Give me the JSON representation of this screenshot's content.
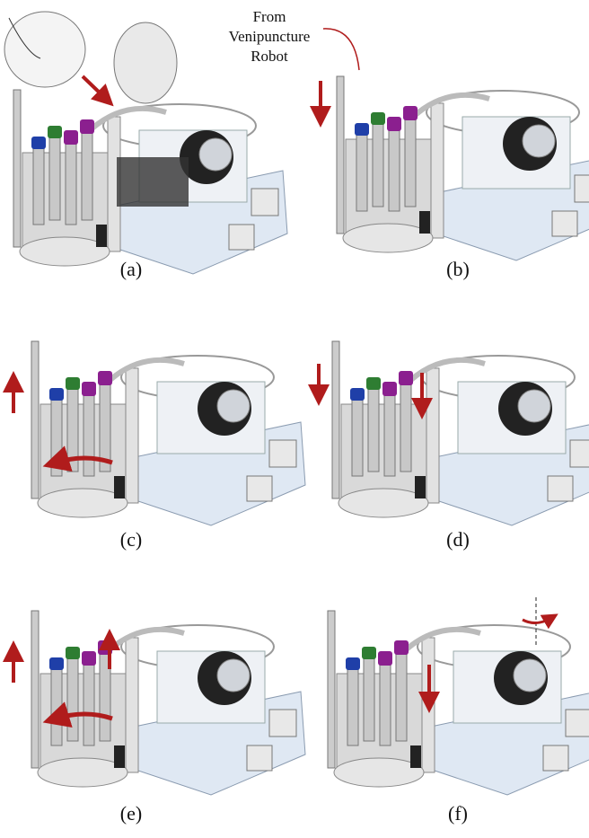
{
  "annotation": {
    "lines": [
      "From",
      "Venipuncture",
      "Robot"
    ]
  },
  "panels": [
    {
      "label": "(a)"
    },
    {
      "label": "(b)"
    },
    {
      "label": "(c)"
    },
    {
      "label": "(d)"
    },
    {
      "label": "(e)"
    },
    {
      "label": "(f)"
    }
  ]
}
